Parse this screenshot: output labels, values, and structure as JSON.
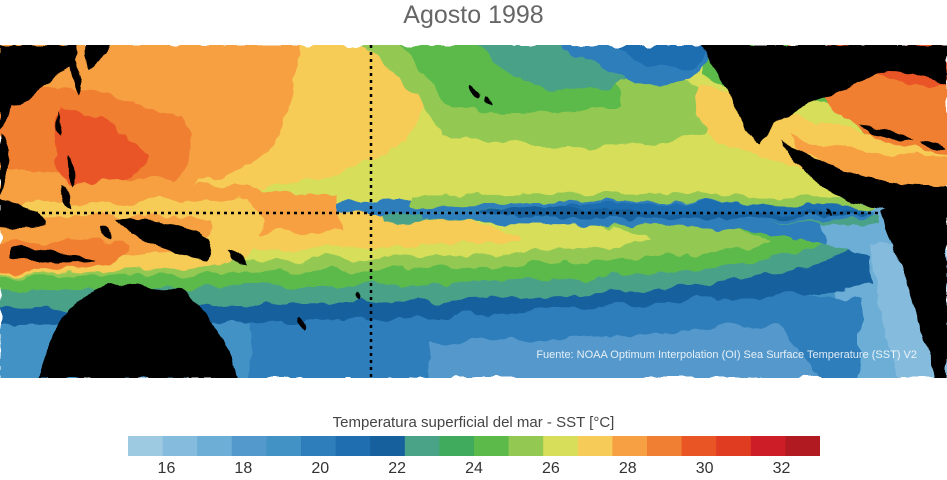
{
  "title": "Agosto 1998",
  "map": {
    "source_note": "Fuente: NOAA Optimum Interpolation (OI) Sea Surface Temperature (SST) V2",
    "land_color": "#000000",
    "reference_lines": [
      "equator",
      "dateline"
    ]
  },
  "colorbar": {
    "title": "Temperatura superficial del mar - SST  [°C]",
    "colors": [
      "#9ecae1",
      "#85bbdd",
      "#6caed6",
      "#5499cc",
      "#4292c6",
      "#2f7ebc",
      "#1f6eb0",
      "#16609e",
      "#4aa287",
      "#41ab5d",
      "#5cba4b",
      "#93c952",
      "#d6de5a",
      "#f6cb57",
      "#f6a043",
      "#f07f33",
      "#e95525",
      "#e03c22",
      "#cd1e27",
      "#b01a20"
    ],
    "tick_labels": [
      "16",
      "18",
      "20",
      "22",
      "24",
      "26",
      "28",
      "30",
      "32"
    ],
    "range": [
      15,
      33
    ]
  }
}
